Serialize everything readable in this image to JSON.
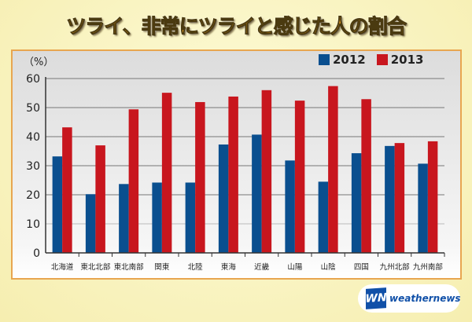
{
  "chart_data": {
    "type": "bar",
    "title": "ツライ、非常にツライと感じた人の割合",
    "ylabel": "（%）",
    "ylim": [
      0,
      60
    ],
    "yticks": [
      0,
      10,
      20,
      30,
      40,
      50,
      60
    ],
    "grid": true,
    "legend_position": "top-right",
    "categories": [
      "北海道",
      "東北北部",
      "東北南部",
      "関東",
      "北陸",
      "東海",
      "近畿",
      "山陽",
      "山陰",
      "四国",
      "九州北部",
      "九州南部"
    ],
    "series": [
      {
        "name": "2012",
        "color": "#0a4f8f",
        "values": [
          33.2,
          20.2,
          23.7,
          24.2,
          24.2,
          37.3,
          40.7,
          31.8,
          24.5,
          34.3,
          36.8,
          30.7
        ]
      },
      {
        "name": "2013",
        "color": "#c8161e",
        "values": [
          43.2,
          37.0,
          49.4,
          55.1,
          51.9,
          53.8,
          56.0,
          52.4,
          57.4,
          52.9,
          37.8,
          38.4
        ]
      }
    ]
  },
  "logo": {
    "mark": "WN",
    "text": "weathernews"
  }
}
